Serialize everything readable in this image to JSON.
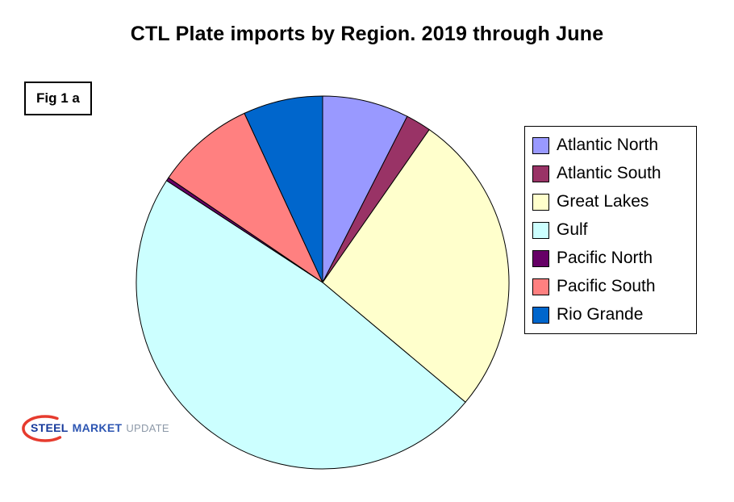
{
  "title": "CTL Plate imports by Region. 2019 through June",
  "figure_label": "Fig 1 a",
  "logo": {
    "steel": "STEEL",
    "market": "MARKET",
    "update": "UPDATE"
  },
  "chart_data": {
    "type": "pie",
    "title": "CTL Plate imports by Region. 2019 through June",
    "labels": [
      "Atlantic North",
      "Atlantic South",
      "Great Lakes",
      "Gulf",
      "Pacific North",
      "Pacific South",
      "Rio Grande"
    ],
    "values": [
      7.5,
      2.2,
      26.4,
      48.1,
      0.3,
      8.6,
      6.9
    ],
    "value_unit": "percent (estimated from slice angles; no data labels shown)",
    "colors": [
      "#9999FF",
      "#993366",
      "#FFFFCC",
      "#CCFFFF",
      "#660066",
      "#FF8080",
      "#0066CC"
    ],
    "legend_position": "right",
    "start_angle_deg": 0,
    "direction": "clockwise",
    "slice_outline_color": "#000000"
  }
}
